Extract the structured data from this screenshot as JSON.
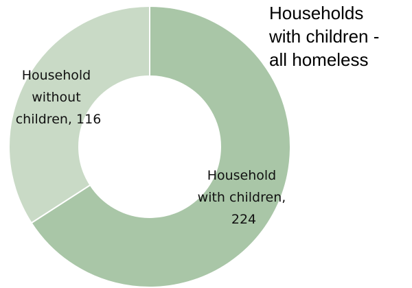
{
  "chart_data": {
    "type": "pie",
    "variant": "donut",
    "title_lines": [
      "Households",
      "with children -",
      "all homeless"
    ],
    "slices": [
      {
        "name": "Household with children",
        "value": 224,
        "color": "#a9c6a7",
        "label_lines": [
          "Household",
          "with children,",
          "224"
        ]
      },
      {
        "name": "Household without children",
        "value": 116,
        "color": "#c9dac6",
        "label_lines": [
          "Household",
          "without",
          "children, 116"
        ]
      }
    ],
    "start_angle": "12 o'clock",
    "direction": "clockwise",
    "legend": "none",
    "separator_color": "#ffffff"
  }
}
